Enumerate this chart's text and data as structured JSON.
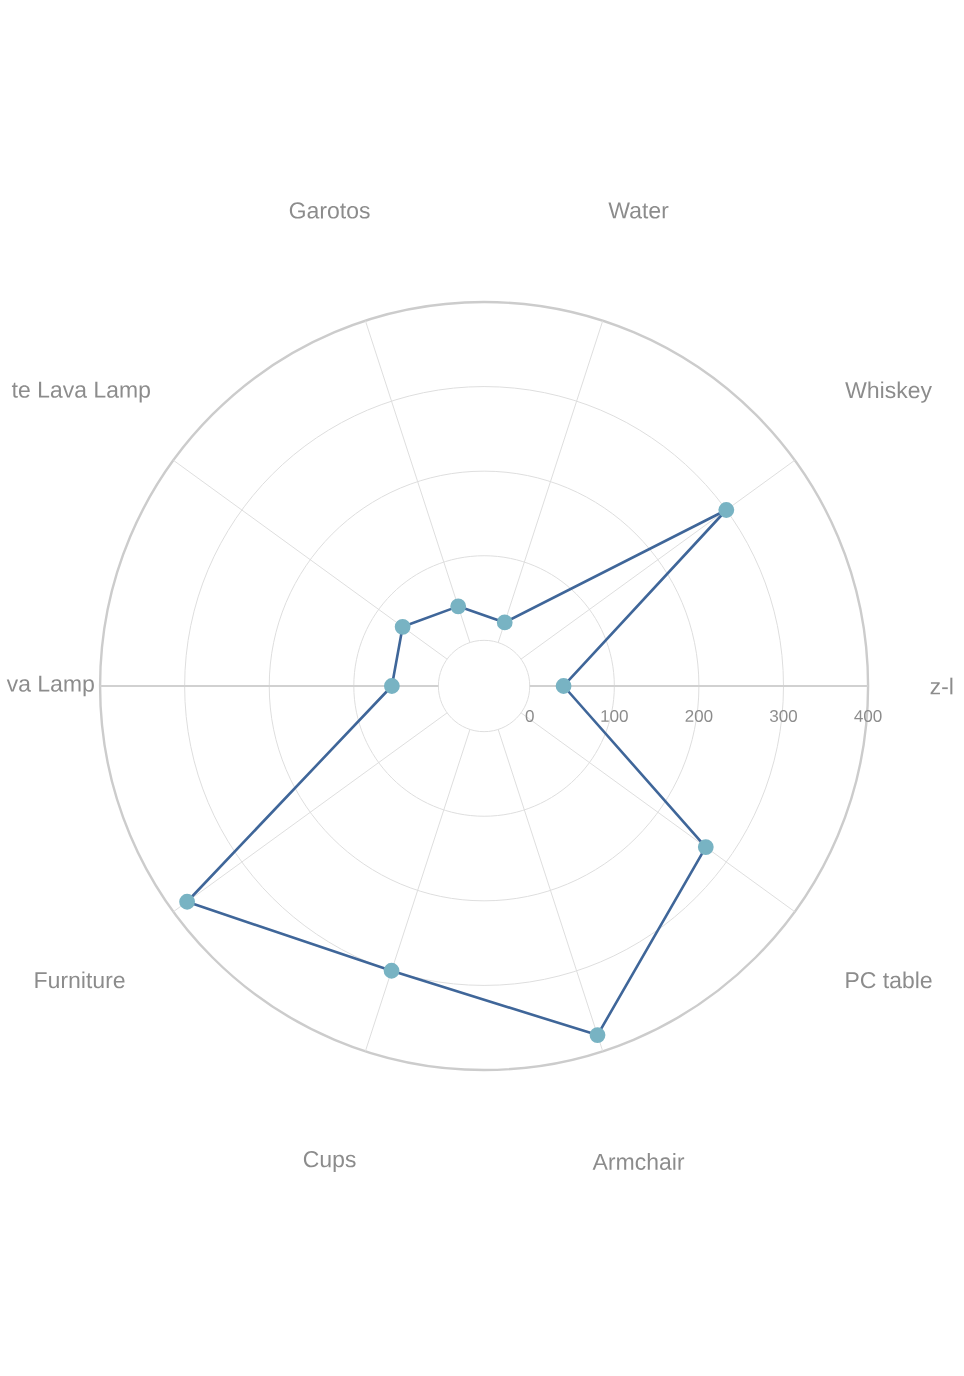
{
  "chart_data": {
    "type": "radar",
    "categories": [
      "Water",
      "Whiskey",
      "z-l",
      "PC table",
      "Armchair",
      "Cups",
      "Furniture",
      "va Lamp",
      "te Lava Lamp",
      "Garotos"
    ],
    "series": [
      {
        "color": "#3f6699",
        "values": [
          25,
          300,
          40,
          270,
          380,
          300,
          380,
          55,
          65,
          45
        ]
      }
    ],
    "ylim": [
      -54,
      400
    ],
    "yticks": [
      0,
      100,
      200,
      300,
      400
    ],
    "grid": true,
    "marker": "circle",
    "line_style": "solid"
  }
}
